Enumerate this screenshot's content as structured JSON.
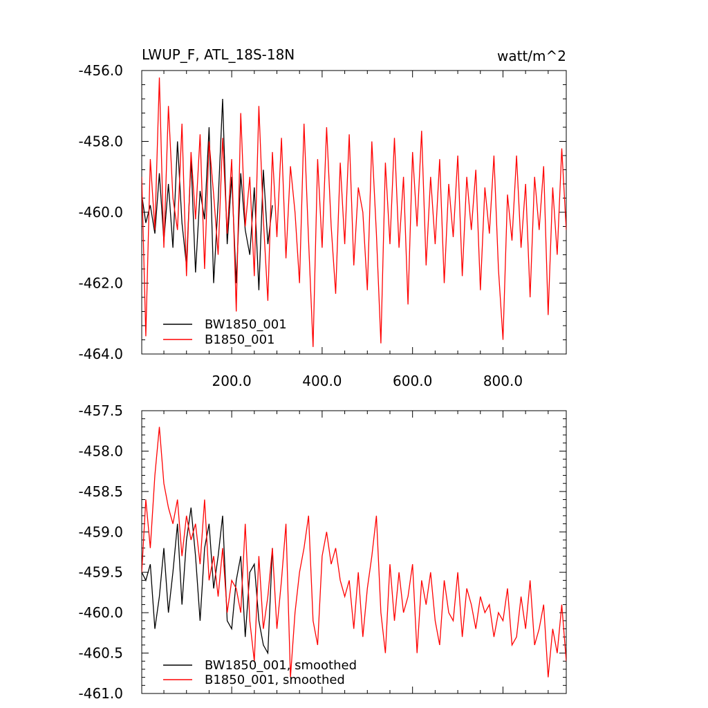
{
  "chart_data": [
    {
      "type": "line",
      "title": "LWUP_F, ATL_18S-18N",
      "units": "watt/m^2",
      "xlim": [
        1,
        940
      ],
      "ylim": [
        -464.0,
        -456.0
      ],
      "x_ticks": [
        200,
        400,
        600,
        800
      ],
      "x_tick_labels": [
        "200.0",
        "400.0",
        "600.0",
        "800.0"
      ],
      "y_ticks": [
        -456,
        -458,
        -460,
        -462,
        -464
      ],
      "y_tick_labels": [
        "-456.0",
        "-458.0",
        "-460.0",
        "-462.0",
        "-464.0"
      ],
      "grid": false,
      "legend_position": "bottom-left",
      "series": [
        {
          "name": "BW1850_001",
          "color": "#000000",
          "x": [
            1,
            10,
            20,
            30,
            40,
            50,
            60,
            70,
            80,
            90,
            100,
            110,
            120,
            130,
            140,
            150,
            160,
            170,
            180,
            190,
            200,
            210,
            220,
            230,
            240,
            250,
            260,
            270,
            280,
            290
          ],
          "values": [
            -459.5,
            -460.3,
            -459.8,
            -460.6,
            -458.9,
            -460.8,
            -459.2,
            -461.0,
            -458.0,
            -460.3,
            -461.5,
            -458.5,
            -461.7,
            -459.4,
            -460.2,
            -457.6,
            -462.0,
            -459.7,
            -456.8,
            -460.9,
            -459.0,
            -462.0,
            -458.9,
            -460.5,
            -461.2,
            -459.3,
            -462.2,
            -458.8,
            -460.9,
            -459.8
          ]
        },
        {
          "name": "B1850_001",
          "color": "#ff0000",
          "x": [
            1,
            10,
            20,
            30,
            40,
            50,
            60,
            70,
            80,
            90,
            100,
            110,
            120,
            130,
            140,
            150,
            160,
            170,
            180,
            190,
            200,
            210,
            220,
            230,
            240,
            250,
            260,
            270,
            280,
            290,
            300,
            310,
            320,
            330,
            340,
            350,
            360,
            370,
            380,
            390,
            400,
            410,
            420,
            430,
            440,
            450,
            460,
            470,
            480,
            490,
            500,
            510,
            520,
            530,
            540,
            550,
            560,
            570,
            580,
            590,
            600,
            610,
            620,
            630,
            640,
            650,
            660,
            670,
            680,
            690,
            700,
            710,
            720,
            730,
            740,
            750,
            760,
            770,
            780,
            790,
            800,
            810,
            820,
            830,
            840,
            850,
            860,
            870,
            880,
            890,
            900,
            910,
            920,
            930,
            940
          ],
          "values": [
            -459.0,
            -463.5,
            -458.5,
            -460.5,
            -456.2,
            -461.0,
            -457.0,
            -459.6,
            -460.5,
            -457.5,
            -461.8,
            -458.3,
            -460.2,
            -457.8,
            -461.6,
            -458.0,
            -459.5,
            -461.2,
            -457.9,
            -460.6,
            -458.5,
            -462.8,
            -457.2,
            -460.4,
            -459.0,
            -461.8,
            -457.0,
            -460.2,
            -462.5,
            -458.3,
            -460.7,
            -457.9,
            -461.3,
            -458.7,
            -460.0,
            -462.0,
            -457.5,
            -460.8,
            -463.8,
            -458.5,
            -461.0,
            -457.6,
            -460.4,
            -462.3,
            -458.6,
            -460.9,
            -457.8,
            -461.5,
            -459.3,
            -460.0,
            -462.2,
            -458.0,
            -460.6,
            -463.7,
            -458.6,
            -460.9,
            -457.9,
            -461.0,
            -459.0,
            -462.6,
            -458.3,
            -460.4,
            -457.7,
            -461.5,
            -459.0,
            -460.9,
            -458.5,
            -462.0,
            -459.2,
            -460.7,
            -458.4,
            -461.8,
            -459.0,
            -460.5,
            -458.8,
            -462.2,
            -459.3,
            -460.6,
            -458.4,
            -461.6,
            -463.6,
            -459.5,
            -460.8,
            -458.4,
            -461.0,
            -459.2,
            -462.4,
            -459.0,
            -460.5,
            -458.7,
            -462.9,
            -459.3,
            -461.2,
            -458.2,
            -460.5
          ]
        }
      ]
    },
    {
      "type": "line",
      "title": "",
      "xlim": [
        1,
        940
      ],
      "ylim": [
        -461.0,
        -457.5
      ],
      "y_ticks": [
        -457.5,
        -458.0,
        -458.5,
        -459.0,
        -459.5,
        -460.0,
        -460.5,
        -461.0
      ],
      "y_tick_labels": [
        "-457.5",
        "-458.0",
        "-458.5",
        "-459.0",
        "-459.5",
        "-460.0",
        "-460.5",
        "-461.0"
      ],
      "grid": false,
      "legend_position": "bottom-left",
      "series": [
        {
          "name": "BW1850_001, smoothed",
          "color": "#000000",
          "x": [
            1,
            10,
            20,
            30,
            40,
            50,
            60,
            70,
            80,
            90,
            100,
            110,
            120,
            130,
            140,
            150,
            160,
            170,
            180,
            190,
            200,
            210,
            220,
            230,
            240,
            250,
            260,
            270,
            280,
            290
          ],
          "values": [
            -459.5,
            -459.6,
            -459.4,
            -460.2,
            -459.8,
            -459.2,
            -460.0,
            -459.5,
            -458.9,
            -459.9,
            -459.1,
            -458.7,
            -459.3,
            -460.1,
            -459.2,
            -458.9,
            -459.7,
            -459.3,
            -458.8,
            -460.1,
            -460.2,
            -459.6,
            -459.3,
            -460.3,
            -459.5,
            -459.4,
            -460.1,
            -460.4,
            -460.5,
            -459.2
          ]
        },
        {
          "name": "B1850_001, smoothed",
          "color": "#ff0000",
          "x": [
            1,
            10,
            20,
            30,
            40,
            50,
            60,
            70,
            80,
            90,
            100,
            110,
            120,
            130,
            140,
            150,
            160,
            170,
            180,
            190,
            200,
            210,
            220,
            230,
            240,
            250,
            260,
            270,
            280,
            290,
            300,
            310,
            320,
            330,
            340,
            350,
            360,
            370,
            380,
            390,
            400,
            410,
            420,
            430,
            440,
            450,
            460,
            470,
            480,
            490,
            500,
            510,
            520,
            530,
            540,
            550,
            560,
            570,
            580,
            590,
            600,
            610,
            620,
            630,
            640,
            650,
            660,
            670,
            680,
            690,
            700,
            710,
            720,
            730,
            740,
            750,
            760,
            770,
            780,
            790,
            800,
            810,
            820,
            830,
            840,
            850,
            860,
            870,
            880,
            890,
            900,
            910,
            920,
            930,
            940
          ],
          "values": [
            -459.5,
            -458.6,
            -459.2,
            -458.3,
            -457.7,
            -458.4,
            -458.7,
            -458.9,
            -458.6,
            -459.3,
            -458.8,
            -459.1,
            -458.9,
            -459.4,
            -458.6,
            -459.6,
            -459.3,
            -459.8,
            -459.2,
            -460.0,
            -459.6,
            -459.7,
            -460.0,
            -458.9,
            -460.1,
            -460.6,
            -459.3,
            -460.2,
            -459.8,
            -459.2,
            -460.2,
            -459.6,
            -458.9,
            -460.8,
            -460.0,
            -459.5,
            -459.2,
            -458.8,
            -460.1,
            -460.4,
            -459.3,
            -459.0,
            -459.4,
            -459.2,
            -459.6,
            -459.8,
            -459.6,
            -460.2,
            -459.5,
            -460.3,
            -459.7,
            -459.3,
            -458.8,
            -460.0,
            -460.5,
            -459.4,
            -460.1,
            -459.5,
            -460.0,
            -459.8,
            -459.4,
            -460.5,
            -459.6,
            -459.9,
            -459.5,
            -460.1,
            -460.4,
            -459.6,
            -460.0,
            -460.1,
            -459.5,
            -460.3,
            -459.7,
            -459.9,
            -460.2,
            -459.8,
            -460.0,
            -459.9,
            -460.3,
            -460.0,
            -460.1,
            -459.7,
            -460.4,
            -460.3,
            -459.8,
            -460.2,
            -459.6,
            -460.4,
            -460.2,
            -459.9,
            -460.8,
            -460.2,
            -460.5,
            -459.9,
            -460.6
          ]
        }
      ]
    }
  ]
}
